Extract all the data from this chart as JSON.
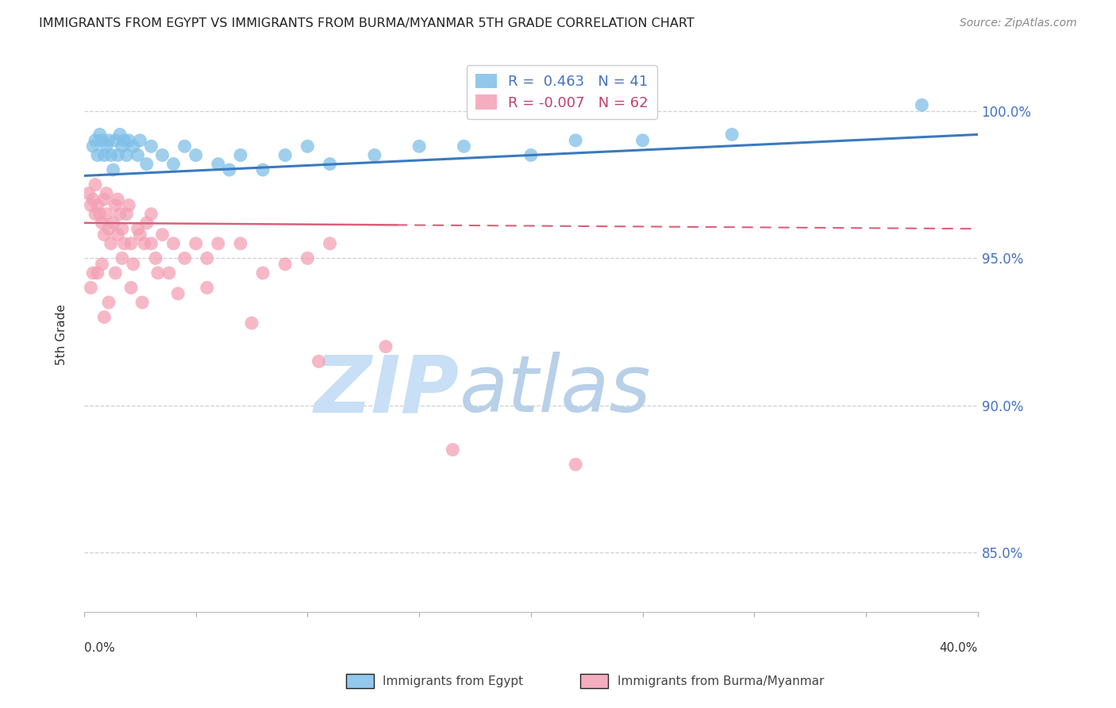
{
  "title": "IMMIGRANTS FROM EGYPT VS IMMIGRANTS FROM BURMA/MYANMAR 5TH GRADE CORRELATION CHART",
  "source": "Source: ZipAtlas.com",
  "ylabel": "5th Grade",
  "y_ticks": [
    85.0,
    90.0,
    95.0,
    100.0
  ],
  "x_min": 0.0,
  "x_max": 40.0,
  "y_min": 83.0,
  "y_max": 101.8,
  "egypt_R": 0.463,
  "egypt_N": 41,
  "burma_R": -0.007,
  "burma_N": 62,
  "egypt_color": "#7fbfe8",
  "burma_color": "#f4a0b5",
  "egypt_line_color": "#3a7abf",
  "burma_line_color": "#d9607a",
  "watermark_zip": "ZIP",
  "watermark_atlas": "atlas",
  "watermark_color_zip": "#c8dff5",
  "watermark_color_atlas": "#b8d0e8",
  "egypt_x": [
    0.4,
    0.5,
    0.6,
    0.7,
    0.8,
    0.9,
    1.0,
    1.1,
    1.2,
    1.3,
    1.4,
    1.5,
    1.6,
    1.7,
    1.8,
    1.9,
    2.0,
    2.2,
    2.4,
    2.5,
    2.8,
    3.0,
    3.5,
    4.0,
    4.5,
    5.0,
    6.0,
    7.0,
    8.0,
    9.0,
    10.0,
    11.0,
    13.0,
    15.0,
    17.0,
    20.0,
    22.0,
    25.0,
    29.0,
    37.5,
    6.5
  ],
  "egypt_y": [
    98.8,
    99.0,
    98.5,
    99.2,
    99.0,
    98.5,
    98.8,
    99.0,
    98.5,
    98.0,
    99.0,
    98.5,
    99.2,
    98.8,
    99.0,
    98.5,
    99.0,
    98.8,
    98.5,
    99.0,
    98.2,
    98.8,
    98.5,
    98.2,
    98.8,
    98.5,
    98.2,
    98.5,
    98.0,
    98.5,
    98.8,
    98.2,
    98.5,
    98.8,
    98.8,
    98.5,
    99.0,
    99.0,
    99.2,
    100.2,
    98.0
  ],
  "burma_x": [
    0.2,
    0.3,
    0.4,
    0.5,
    0.5,
    0.6,
    0.7,
    0.8,
    0.9,
    0.9,
    1.0,
    1.0,
    1.1,
    1.2,
    1.3,
    1.4,
    1.5,
    1.5,
    1.6,
    1.7,
    1.8,
    1.9,
    2.0,
    2.1,
    2.2,
    2.4,
    2.5,
    2.7,
    2.8,
    3.0,
    3.0,
    3.2,
    3.5,
    3.8,
    4.0,
    4.5,
    5.0,
    5.5,
    6.0,
    7.0,
    8.0,
    9.0,
    10.0,
    11.0,
    0.3,
    0.6,
    0.8,
    1.1,
    1.4,
    1.7,
    2.1,
    2.6,
    3.3,
    4.2,
    5.5,
    7.5,
    10.5,
    13.5,
    16.5,
    22.0,
    0.4,
    0.9
  ],
  "burma_y": [
    97.2,
    96.8,
    97.0,
    96.5,
    97.5,
    96.8,
    96.5,
    96.2,
    95.8,
    97.0,
    96.5,
    97.2,
    96.0,
    95.5,
    96.2,
    96.8,
    95.8,
    97.0,
    96.5,
    96.0,
    95.5,
    96.5,
    96.8,
    95.5,
    94.8,
    96.0,
    95.8,
    95.5,
    96.2,
    95.5,
    96.5,
    95.0,
    95.8,
    94.5,
    95.5,
    95.0,
    95.5,
    95.0,
    95.5,
    95.5,
    94.5,
    94.8,
    95.0,
    95.5,
    94.0,
    94.5,
    94.8,
    93.5,
    94.5,
    95.0,
    94.0,
    93.5,
    94.5,
    93.8,
    94.0,
    92.8,
    91.5,
    92.0,
    88.5,
    88.0,
    94.5,
    93.0
  ],
  "egypt_line_x0": 0.0,
  "egypt_line_x1": 40.0,
  "egypt_line_y0": 97.8,
  "egypt_line_y1": 99.2,
  "burma_line_x0": 0.0,
  "burma_line_x1": 40.0,
  "burma_line_y0": 96.2,
  "burma_line_y1": 96.0,
  "burma_solid_x1": 14.0
}
